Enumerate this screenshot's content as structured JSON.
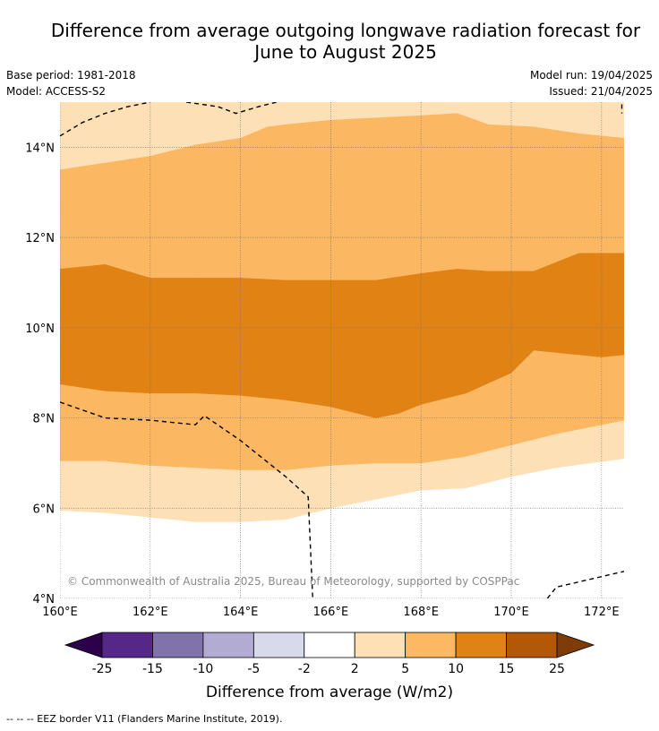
{
  "title_line1": "Difference from average outgoing longwave radiation forecast for",
  "title_line2": "June to August 2025",
  "base_period": "Base period: 1981-2018",
  "model": "Model: ACCESS-S2",
  "model_run": "Model run: 19/04/2025",
  "issued": "Issued: 21/04/2025",
  "copyright": "© Commonwealth of Australia 2025, Bureau of Meteorology, supported by COSPPac",
  "footnote": "-- -- -- EEZ border V11 (Flanders Marine Institute, 2019).",
  "map": {
    "lon_range": [
      160,
      172.5
    ],
    "lat_range": [
      4,
      15
    ],
    "lon_ticks": [
      {
        "value": 160,
        "label": "160°E"
      },
      {
        "value": 162,
        "label": "162°E"
      },
      {
        "value": 164,
        "label": "164°E"
      },
      {
        "value": 166,
        "label": "166°E"
      },
      {
        "value": 168,
        "label": "168°E"
      },
      {
        "value": 170,
        "label": "170°E"
      },
      {
        "value": 172,
        "label": "172°E"
      }
    ],
    "lat_ticks": [
      {
        "value": 4,
        "label": "4°N"
      },
      {
        "value": 6,
        "label": "6°N"
      },
      {
        "value": 8,
        "label": "8°N"
      },
      {
        "value": 10,
        "label": "10°N"
      },
      {
        "value": 12,
        "label": "12°N"
      },
      {
        "value": 14,
        "label": "14°N"
      }
    ],
    "grid": true,
    "bands": [
      {
        "range": "2 to 5",
        "color": "#fde0b5",
        "upper": [
          [
            160,
            15
          ],
          [
            172.5,
            15
          ]
        ],
        "lower": [
          [
            160,
            5.95
          ],
          [
            161,
            5.9
          ],
          [
            162,
            5.8
          ],
          [
            163,
            5.7
          ],
          [
            164,
            5.7
          ],
          [
            165,
            5.75
          ],
          [
            166,
            6
          ],
          [
            167,
            6.2
          ],
          [
            168,
            6.4
          ],
          [
            169,
            6.45
          ],
          [
            170,
            6.7
          ],
          [
            171,
            6.9
          ],
          [
            172.5,
            7.1
          ]
        ]
      },
      {
        "range": "5 to 10",
        "color": "#fbb762",
        "upper": [
          [
            160,
            13.5
          ],
          [
            161,
            13.65
          ],
          [
            162,
            13.8
          ],
          [
            163,
            14.05
          ],
          [
            164,
            14.2
          ],
          [
            164.6,
            14.45
          ],
          [
            165,
            14.5
          ],
          [
            166,
            14.6
          ],
          [
            167,
            14.65
          ],
          [
            168,
            14.7
          ],
          [
            168.8,
            14.75
          ],
          [
            169.5,
            14.5
          ],
          [
            170.5,
            14.45
          ],
          [
            171.5,
            14.3
          ],
          [
            172.5,
            14.2
          ]
        ],
        "lower": [
          [
            160,
            7.05
          ],
          [
            161,
            7.05
          ],
          [
            162,
            6.95
          ],
          [
            163,
            6.9
          ],
          [
            164,
            6.85
          ],
          [
            165,
            6.85
          ],
          [
            166,
            6.95
          ],
          [
            167,
            7
          ],
          [
            168,
            7
          ],
          [
            169,
            7.15
          ],
          [
            170,
            7.4
          ],
          [
            171,
            7.65
          ],
          [
            172.5,
            7.95
          ]
        ]
      },
      {
        "range": "10 to 15",
        "color": "#e08214",
        "upper": [
          [
            160,
            11.3
          ],
          [
            161,
            11.4
          ],
          [
            162,
            11.1
          ],
          [
            163,
            11.1
          ],
          [
            164,
            11.1
          ],
          [
            165,
            11.05
          ],
          [
            166,
            11.05
          ],
          [
            167,
            11.05
          ],
          [
            168,
            11.2
          ],
          [
            168.8,
            11.3
          ],
          [
            169.5,
            11.25
          ],
          [
            170.5,
            11.25
          ],
          [
            171,
            11.45
          ],
          [
            171.5,
            11.65
          ],
          [
            172.5,
            11.65
          ]
        ],
        "lower": [
          [
            160,
            8.75
          ],
          [
            161,
            8.6
          ],
          [
            162,
            8.55
          ],
          [
            163,
            8.55
          ],
          [
            164,
            8.5
          ],
          [
            165,
            8.4
          ],
          [
            166,
            8.25
          ],
          [
            167,
            8
          ],
          [
            167.5,
            8.1
          ],
          [
            168,
            8.3
          ],
          [
            169,
            8.55
          ],
          [
            170,
            9
          ],
          [
            170.5,
            9.5
          ],
          [
            171,
            9.45
          ],
          [
            172,
            9.35
          ],
          [
            172.5,
            9.4
          ]
        ]
      }
    ],
    "eez_borders": [
      [
        [
          160,
          14.25
        ],
        [
          160.5,
          14.55
        ],
        [
          161,
          14.75
        ],
        [
          161.5,
          14.9
        ],
        [
          162,
          15
        ]
      ],
      [
        [
          162.8,
          15
        ],
        [
          163.5,
          14.9
        ],
        [
          163.9,
          14.75
        ],
        [
          164.4,
          14.9
        ],
        [
          164.8,
          15
        ]
      ],
      [
        [
          160,
          8.35
        ],
        [
          161,
          8
        ],
        [
          162,
          7.95
        ],
        [
          163,
          7.85
        ],
        [
          163.2,
          8.05
        ],
        [
          164,
          7.5
        ],
        [
          164.5,
          7.1
        ],
        [
          165,
          6.7
        ],
        [
          165.5,
          6.25
        ],
        [
          165.6,
          4
        ]
      ],
      [
        [
          170.8,
          4
        ],
        [
          171,
          4.25
        ],
        [
          172.5,
          4.6
        ]
      ],
      [
        [
          172.45,
          14.95
        ],
        [
          172.45,
          14.75
        ]
      ]
    ]
  },
  "colorbar": {
    "label": "Difference from average (W/m2)",
    "colors": [
      "#2d004b",
      "#542788",
      "#8073ac",
      "#b2abd2",
      "#d8daeb",
      "#ffffff",
      "#fee0b6",
      "#fdb863",
      "#e08214",
      "#b35806",
      "#7f3b08"
    ],
    "tick_labels": [
      "-25",
      "-15",
      "-10",
      "-5",
      "-2",
      "2",
      "5",
      "10",
      "15",
      "25"
    ]
  }
}
